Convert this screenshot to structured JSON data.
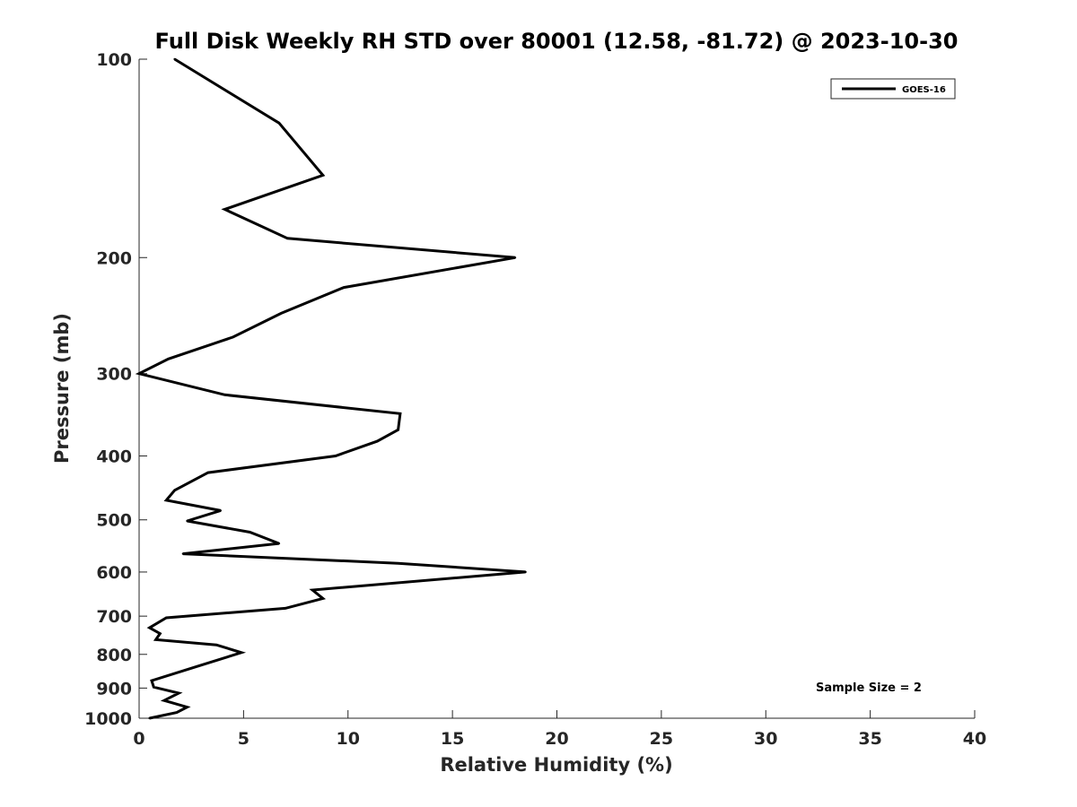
{
  "chart_data": {
    "type": "line",
    "title": "Full Disk Weekly RH STD over 80001 (12.58, -81.72) @ 2023-10-30",
    "xlabel": "Relative Humidity (%)",
    "ylabel": "Pressure (mb)",
    "xlim": [
      0,
      40
    ],
    "ylim": [
      100,
      1000
    ],
    "yscale": "log",
    "reversed_y": true,
    "x_ticks": [
      0,
      5,
      10,
      15,
      20,
      25,
      30,
      35,
      40
    ],
    "x_tick_labels": [
      "0",
      "5",
      "10",
      "15",
      "20",
      "25",
      "30",
      "35",
      "40"
    ],
    "y_ticks": [
      100,
      200,
      300,
      400,
      500,
      600,
      700,
      800,
      900,
      1000
    ],
    "y_tick_labels": [
      "100",
      "200",
      "300",
      "400",
      "500",
      "600",
      "700",
      "800",
      "900",
      "1000"
    ],
    "grid": false,
    "legend": {
      "position": "top-right",
      "entries": [
        "GOES-16"
      ]
    },
    "annotation": "Sample Size = 2",
    "series": [
      {
        "name": "GOES-16",
        "color": "#000000",
        "points": [
          [
            1.7,
            100
          ],
          [
            6.7,
            125
          ],
          [
            8.8,
            150
          ],
          [
            4.1,
            169
          ],
          [
            7.1,
            187
          ],
          [
            18.0,
            200
          ],
          [
            9.8,
            222
          ],
          [
            6.8,
            243
          ],
          [
            4.5,
            264
          ],
          [
            1.4,
            285
          ],
          [
            0.0,
            300
          ],
          [
            4.1,
            323
          ],
          [
            12.5,
            345
          ],
          [
            12.4,
            365
          ],
          [
            11.4,
            380
          ],
          [
            9.4,
            400
          ],
          [
            3.3,
            424
          ],
          [
            1.7,
            451
          ],
          [
            1.3,
            467
          ],
          [
            3.9,
            484
          ],
          [
            2.3,
            502
          ],
          [
            5.3,
            522
          ],
          [
            6.7,
            543
          ],
          [
            2.1,
            563
          ],
          [
            12.4,
            582
          ],
          [
            18.5,
            600
          ],
          [
            8.3,
            639
          ],
          [
            8.8,
            658
          ],
          [
            7.0,
            681
          ],
          [
            1.3,
            704
          ],
          [
            0.5,
            729
          ],
          [
            1.0,
            744
          ],
          [
            0.8,
            760
          ],
          [
            3.7,
            774
          ],
          [
            4.9,
            795
          ],
          [
            2.9,
            832
          ],
          [
            0.6,
            877
          ],
          [
            0.7,
            897
          ],
          [
            1.9,
            916
          ],
          [
            1.2,
            940
          ],
          [
            2.3,
            962
          ],
          [
            1.8,
            980
          ],
          [
            0.5,
            1000
          ]
        ]
      }
    ]
  }
}
